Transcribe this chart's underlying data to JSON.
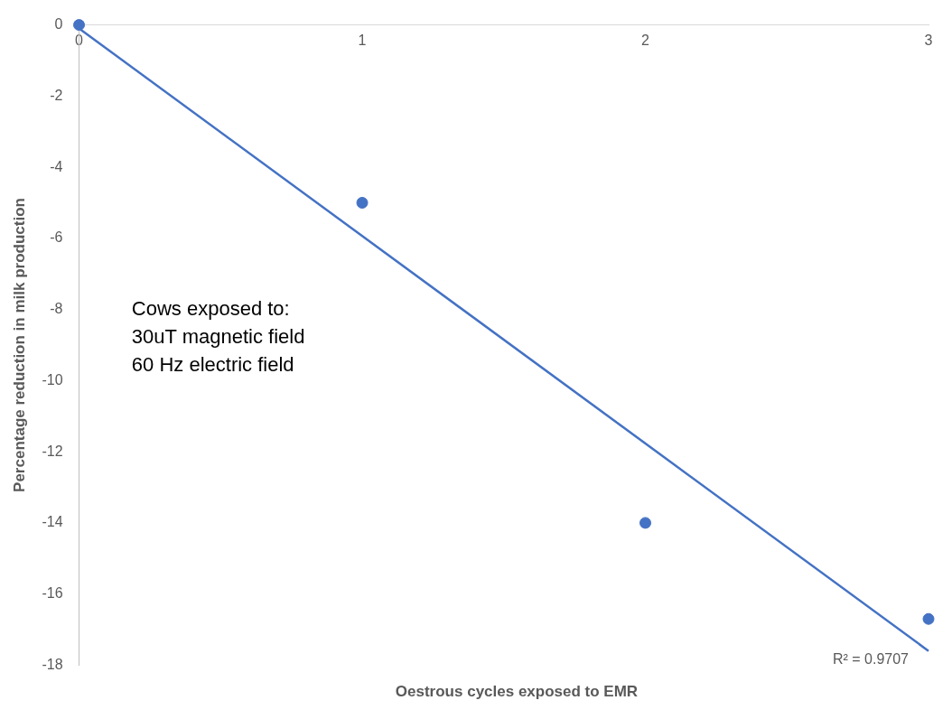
{
  "chart_data": {
    "type": "scatter",
    "xlabel": "Oestrous cycles exposed to EMR",
    "ylabel": "Percentage reduction in milk production",
    "xlim": [
      0,
      3
    ],
    "xticks": [
      0,
      1,
      2,
      3
    ],
    "ylim": [
      -18,
      0
    ],
    "yticks": [
      -18,
      -16,
      -14,
      -12,
      -10,
      -8,
      -6,
      -4,
      -2,
      0
    ],
    "grid": false,
    "marker": "circle",
    "series": [
      {
        "type": "scatter",
        "color": "#4472c4",
        "x": [
          0,
          1,
          2,
          3
        ],
        "values": [
          0,
          -5,
          -14,
          -16.7
        ]
      },
      {
        "type": "line",
        "color": "#4472c4",
        "x": [
          0,
          3
        ],
        "values": [
          -0.1,
          -17.6
        ],
        "line_style": "solid",
        "marker": "none"
      }
    ],
    "annotations": [
      "Cows exposed to:\n30uT magnetic field\n60 Hz electric field",
      {
        "text": "R² = 0.9707",
        "x": 3,
        "y": -17.6
      }
    ]
  }
}
